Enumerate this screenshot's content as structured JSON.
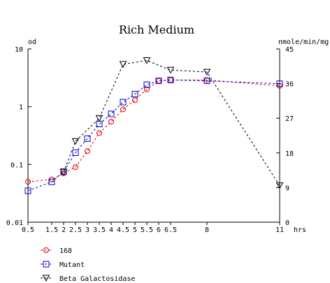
{
  "chart_data": {
    "type": "line",
    "title": "Rich Medium",
    "left_axis_label": "od",
    "right_axis_label": "nmole/min/mg",
    "x_axis_unit": "hrs",
    "left_axis": {
      "scale": "log",
      "ylim": [
        0.01,
        10
      ],
      "ticks": [
        "0.01",
        "0.1",
        "1",
        "10"
      ]
    },
    "right_axis": {
      "scale": "linear",
      "ylim": [
        0,
        45
      ],
      "ticks": [
        "0",
        "9",
        "18",
        "27",
        "36",
        "45"
      ]
    },
    "x_ticks": [
      "0.5",
      "1.5",
      "2",
      "2.5",
      "3",
      "3.5",
      "4",
      "4.5",
      "5",
      "5.5",
      "6",
      "6.5",
      "8",
      "11"
    ],
    "xlim": [
      0.5,
      11
    ],
    "grid": false,
    "legend_position": "bottom-left",
    "series": [
      {
        "name": "168",
        "axis": "left",
        "color": "#dd0000",
        "marker": "circle",
        "x": [
          0.5,
          1.5,
          2,
          2.5,
          3,
          3.5,
          4,
          4.5,
          5,
          5.5,
          6,
          6.5,
          8,
          11
        ],
        "y": [
          0.05,
          0.055,
          0.07,
          0.09,
          0.17,
          0.35,
          0.55,
          0.9,
          1.3,
          2.0,
          2.8,
          2.9,
          2.9,
          2.3
        ]
      },
      {
        "name": "Mutant",
        "axis": "left",
        "color": "#0000cc",
        "marker": "square",
        "x": [
          0.5,
          1.5,
          2,
          2.5,
          3,
          3.5,
          4,
          4.5,
          5,
          5.5,
          6,
          6.5,
          8,
          11
        ],
        "y": [
          0.035,
          0.05,
          0.075,
          0.16,
          0.28,
          0.5,
          0.75,
          1.2,
          1.65,
          2.4,
          2.8,
          2.9,
          2.8,
          2.5
        ]
      },
      {
        "name": "Beta Galactosidase",
        "axis": "right",
        "color": "#000000",
        "marker": "triangle-down",
        "x": [
          2,
          2.5,
          3.5,
          4.5,
          5.5,
          6.5,
          8,
          11
        ],
        "y": [
          13,
          21,
          27,
          41,
          42,
          39.5,
          39,
          9.5
        ]
      }
    ]
  }
}
